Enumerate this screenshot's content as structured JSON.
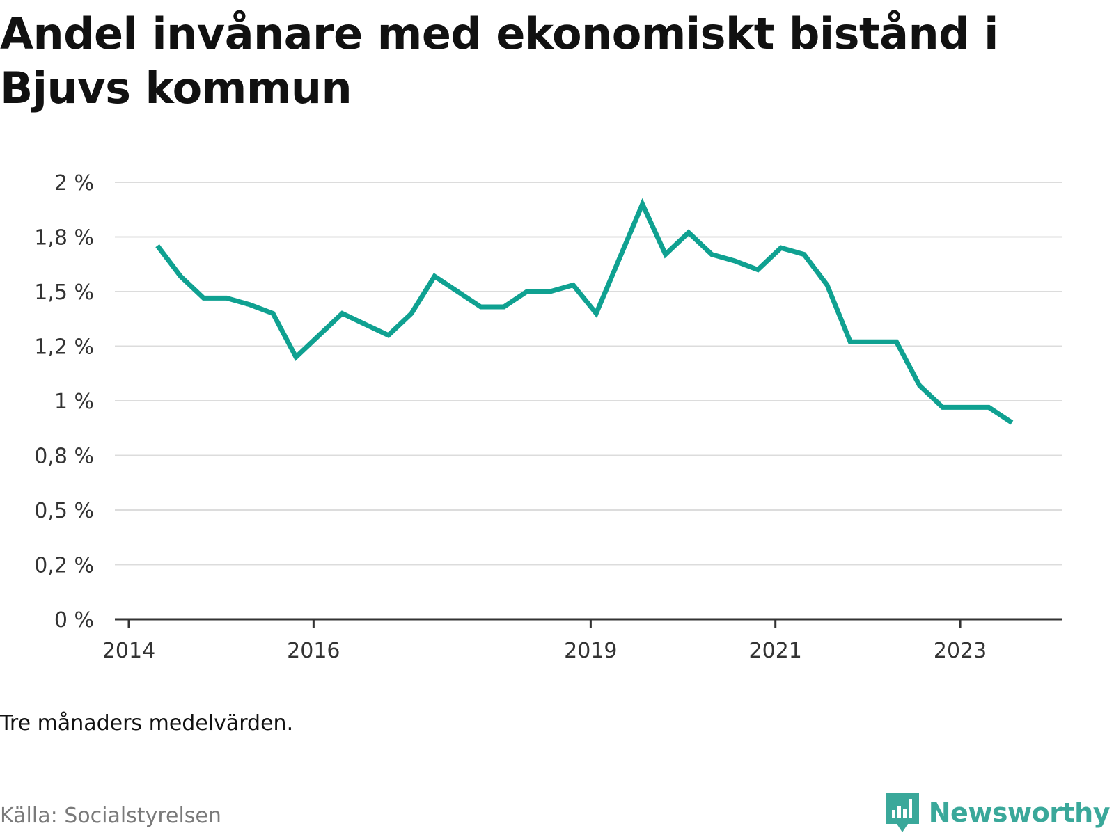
{
  "title": "Andel invånare med ekonomiskt bistånd i Bjuvs kommun",
  "note": "Tre månaders medelvärden.",
  "source": "Källa: Socialstyrelsen",
  "brand": {
    "name": "Newsworthy",
    "icon": "bar-chart-speech-bubble-icon",
    "color": "#3aa89a"
  },
  "chart_data": {
    "type": "line",
    "title": "Andel invånare med ekonomiskt bistånd i Bjuvs kommun",
    "xlabel": "",
    "ylabel": "",
    "grid": true,
    "legend": "none",
    "line_color": "#0fa191",
    "ylim": [
      0,
      2
    ],
    "xlim": [
      2014,
      2024.1
    ],
    "y_ticks": [
      {
        "value": 0,
        "label": "0 %"
      },
      {
        "value": 0.25,
        "label": "0,2 %"
      },
      {
        "value": 0.5,
        "label": "0,5 %"
      },
      {
        "value": 0.75,
        "label": "0,8 %"
      },
      {
        "value": 1.0,
        "label": "1 %"
      },
      {
        "value": 1.25,
        "label": "1,2 %"
      },
      {
        "value": 1.5,
        "label": "1,5 %"
      },
      {
        "value": 1.75,
        "label": "1,8 %"
      },
      {
        "value": 2.0,
        "label": "2 %"
      }
    ],
    "x_ticks": [
      {
        "value": 2014,
        "label": "2014"
      },
      {
        "value": 2016,
        "label": "2016"
      },
      {
        "value": 2019,
        "label": "2019"
      },
      {
        "value": 2021,
        "label": "2021"
      },
      {
        "value": 2023,
        "label": "2023"
      }
    ],
    "series": [
      {
        "values": [
          {
            "x": 2014.31,
            "y": 1.71
          },
          {
            "x": 2014.56,
            "y": 1.57
          },
          {
            "x": 2014.81,
            "y": 1.47
          },
          {
            "x": 2015.06,
            "y": 1.47
          },
          {
            "x": 2015.31,
            "y": 1.44
          },
          {
            "x": 2015.56,
            "y": 1.4
          },
          {
            "x": 2015.81,
            "y": 1.2
          },
          {
            "x": 2016.06,
            "y": 1.3
          },
          {
            "x": 2016.31,
            "y": 1.4
          },
          {
            "x": 2016.56,
            "y": 1.35
          },
          {
            "x": 2016.81,
            "y": 1.3
          },
          {
            "x": 2017.06,
            "y": 1.4
          },
          {
            "x": 2017.31,
            "y": 1.57
          },
          {
            "x": 2017.56,
            "y": 1.5
          },
          {
            "x": 2017.81,
            "y": 1.43
          },
          {
            "x": 2018.06,
            "y": 1.43
          },
          {
            "x": 2018.31,
            "y": 1.5
          },
          {
            "x": 2018.56,
            "y": 1.5
          },
          {
            "x": 2018.81,
            "y": 1.53
          },
          {
            "x": 2019.06,
            "y": 1.4
          },
          {
            "x": 2019.31,
            "y": 1.65
          },
          {
            "x": 2019.56,
            "y": 1.9
          },
          {
            "x": 2019.81,
            "y": 1.67
          },
          {
            "x": 2020.06,
            "y": 1.77
          },
          {
            "x": 2020.31,
            "y": 1.67
          },
          {
            "x": 2020.56,
            "y": 1.64
          },
          {
            "x": 2020.81,
            "y": 1.6
          },
          {
            "x": 2021.06,
            "y": 1.7
          },
          {
            "x": 2021.31,
            "y": 1.67
          },
          {
            "x": 2021.56,
            "y": 1.53
          },
          {
            "x": 2021.81,
            "y": 1.27
          },
          {
            "x": 2022.06,
            "y": 1.27
          },
          {
            "x": 2022.31,
            "y": 1.27
          },
          {
            "x": 2022.56,
            "y": 1.07
          },
          {
            "x": 2022.81,
            "y": 0.97
          },
          {
            "x": 2023.06,
            "y": 0.97
          },
          {
            "x": 2023.31,
            "y": 0.97
          },
          {
            "x": 2023.56,
            "y": 0.9
          }
        ]
      }
    ]
  }
}
